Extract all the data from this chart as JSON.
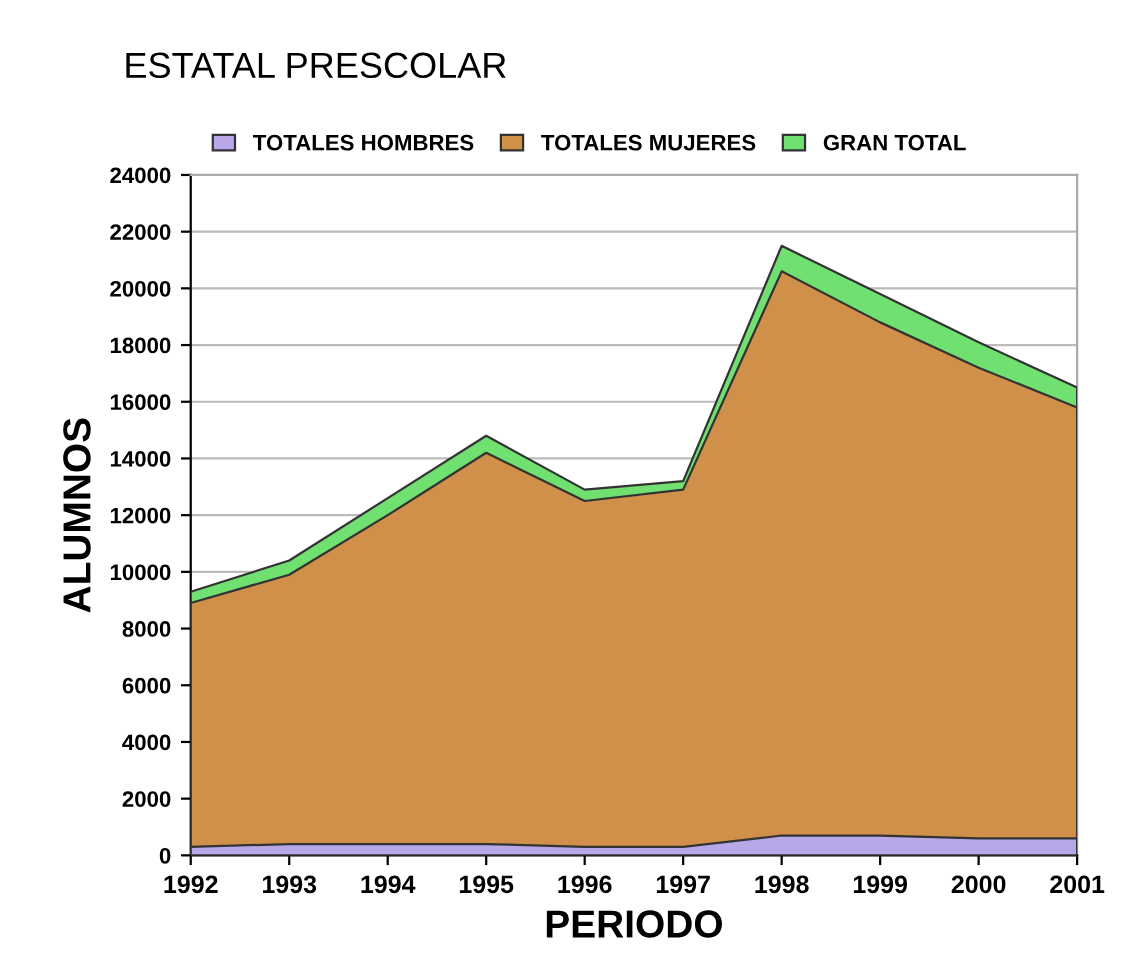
{
  "chart_data": {
    "type": "area",
    "title": "ESTATAL PRESCOLAR",
    "xlabel": "PERIODO",
    "ylabel": "ALUMNOS",
    "categories": [
      "1992",
      "1993",
      "1994",
      "1995",
      "1996",
      "1997",
      "1998",
      "1999",
      "2000",
      "2001"
    ],
    "series": [
      {
        "name": "TOTALES HOMBRES",
        "color": "#b8a8e8",
        "values": [
          300,
          400,
          400,
          400,
          300,
          300,
          700,
          700,
          600,
          600
        ]
      },
      {
        "name": "TOTALES MUJERES",
        "color": "#d0904a",
        "values": [
          8900,
          9900,
          12000,
          14200,
          12500,
          12900,
          20600,
          18800,
          17200,
          15800
        ]
      },
      {
        "name": "GRAN TOTAL",
        "color": "#70e070",
        "values": [
          9300,
          10400,
          12600,
          14800,
          12900,
          13200,
          21500,
          19800,
          18100,
          16500
        ]
      }
    ],
    "ylim": [
      0,
      24000
    ],
    "yticks": [
      0,
      2000,
      4000,
      6000,
      8000,
      10000,
      12000,
      14000,
      16000,
      18000,
      20000,
      22000,
      24000
    ],
    "grid": "y",
    "legend": "top"
  }
}
